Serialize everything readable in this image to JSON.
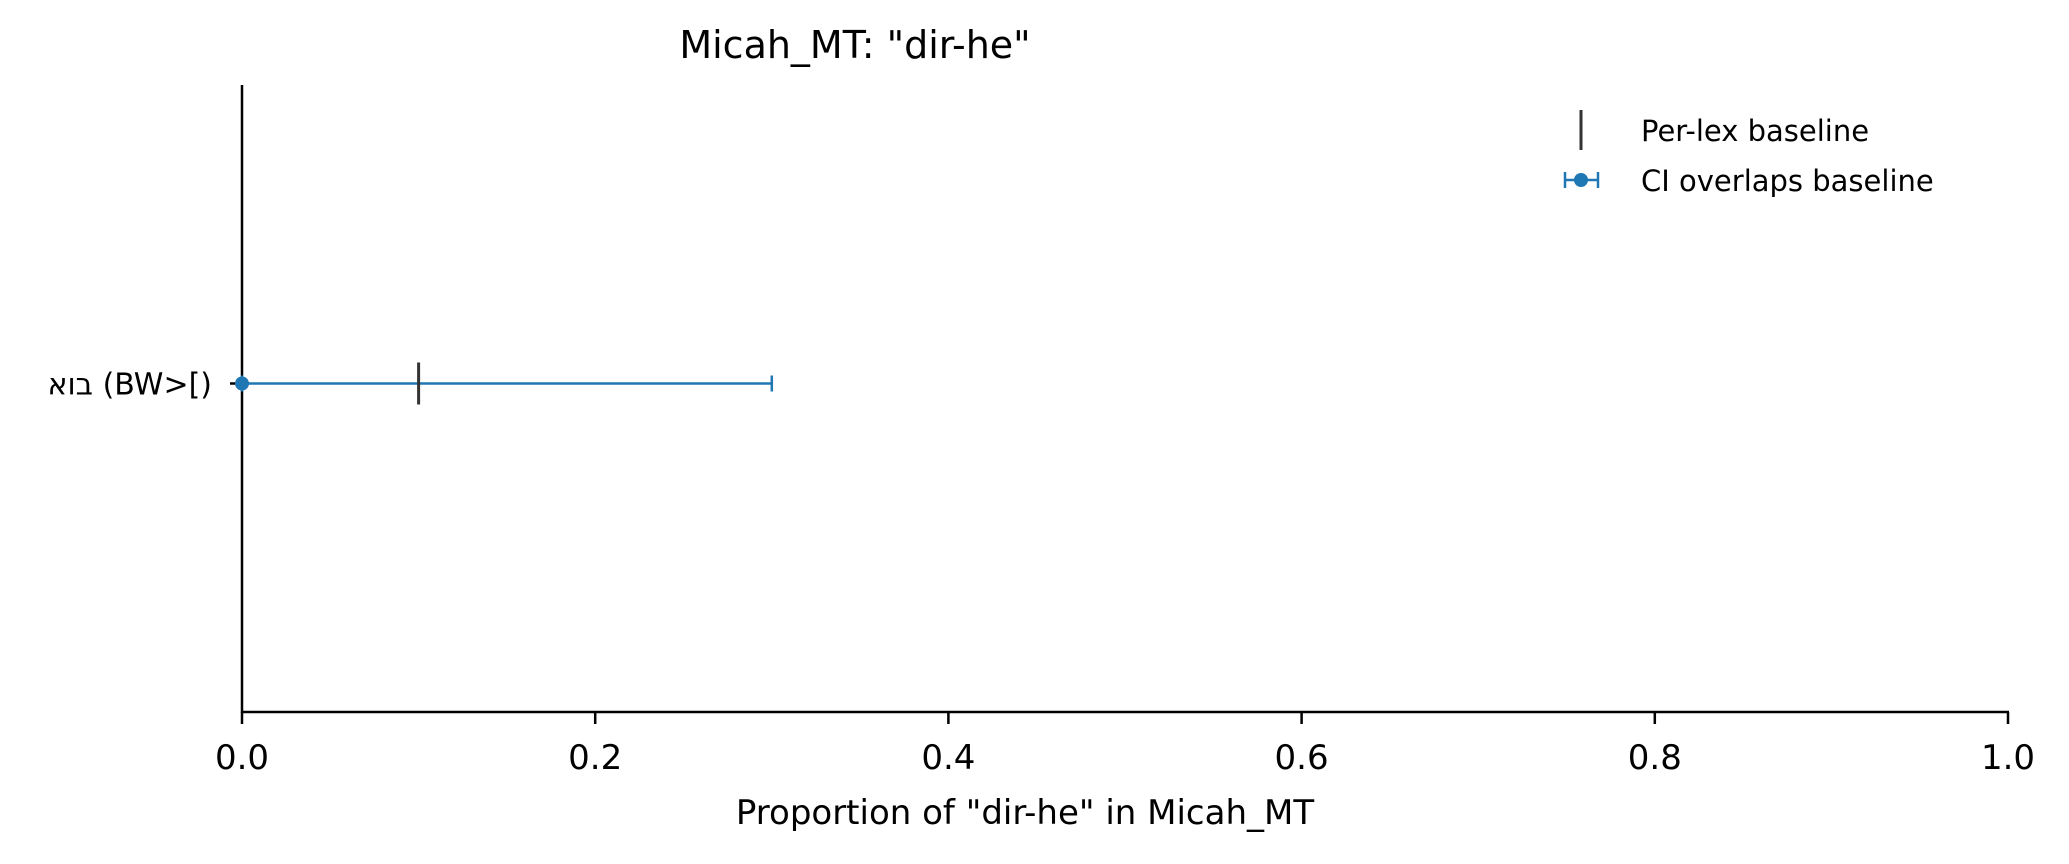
{
  "chart_data": {
    "type": "errorbar",
    "title": "Micah_MT: \"dir-he\"",
    "xlabel": "Proportion of \"dir-he\" in Micah_MT",
    "xlim": [
      0.0,
      1.0
    ],
    "x_ticks": [
      "0.0",
      "0.2",
      "0.4",
      "0.6",
      "0.8",
      "1.0"
    ],
    "grid": false,
    "legend_position": "top-right",
    "legend": [
      {
        "label": "Per-lex baseline",
        "marker": "vertical-line",
        "color": "#333333"
      },
      {
        "label": "CI overlaps baseline",
        "marker": "dot-errorbar",
        "color": "#1f77b4"
      }
    ],
    "categories": [
      "בוא (BW>[)"
    ],
    "points": [
      {
        "label": "בוא (BW>[)",
        "value": 0.0,
        "ci_low": 0.0,
        "ci_high": 0.3,
        "baseline": 0.1
      }
    ],
    "colors": {
      "point": "#1f77b4",
      "baseline": "#333333",
      "axis": "#000000"
    }
  }
}
